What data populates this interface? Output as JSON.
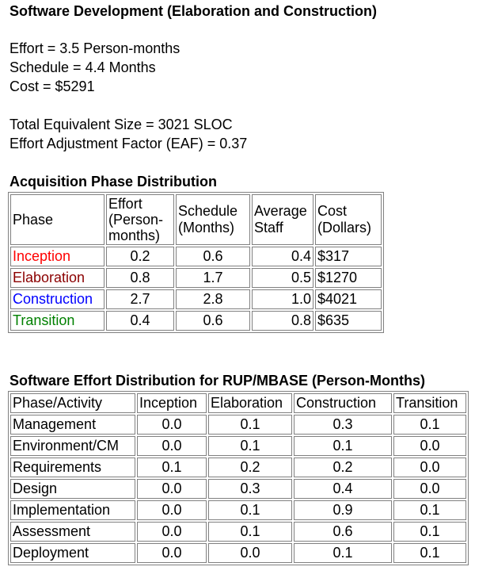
{
  "title": "Software Development (Elaboration and Construction)",
  "summary": {
    "effort": "Effort = 3.5 Person-months",
    "schedule": "Schedule = 4.4 Months",
    "cost": "Cost = $5291"
  },
  "size": {
    "total": "Total Equivalent Size = 3021 SLOC",
    "eaf": "Effort Adjustment Factor (EAF) = 0.37"
  },
  "phase_section": {
    "heading": "Acquisition Phase Distribution",
    "headers": {
      "phase": "Phase",
      "effort_l1": "Effort",
      "effort_l2": "(Person-",
      "effort_l3": "months)",
      "schedule_l1": "Schedule",
      "schedule_l2": "(Months)",
      "staff_l1": "Average",
      "staff_l2": "Staff",
      "cost_l1": "Cost",
      "cost_l2": "(Dollars)"
    },
    "rows": [
      {
        "phase": "Inception",
        "effort": "0.2",
        "schedule": "0.6",
        "staff": "0.4",
        "cost": "$317",
        "color": "#ff0000"
      },
      {
        "phase": "Elaboration",
        "effort": "0.8",
        "schedule": "1.7",
        "staff": "0.5",
        "cost": "$1270",
        "color": "#8b0000"
      },
      {
        "phase": "Construction",
        "effort": "2.7",
        "schedule": "2.8",
        "staff": "1.0",
        "cost": "$4021",
        "color": "#0000ff"
      },
      {
        "phase": "Transition",
        "effort": "0.4",
        "schedule": "0.6",
        "staff": "0.8",
        "cost": "$635",
        "color": "#008000"
      }
    ]
  },
  "dist_section": {
    "heading": "Software Effort Distribution for RUP/MBASE (Person-Months)",
    "headers": [
      "Phase/Activity",
      "Inception",
      "Elaboration",
      "Construction",
      "Transition"
    ],
    "rows": [
      [
        "Management",
        "0.0",
        "0.1",
        "0.3",
        "0.1"
      ],
      [
        "Environment/CM",
        "0.0",
        "0.1",
        "0.1",
        "0.0"
      ],
      [
        "Requirements",
        "0.1",
        "0.2",
        "0.2",
        "0.0"
      ],
      [
        "Design",
        "0.0",
        "0.3",
        "0.4",
        "0.0"
      ],
      [
        "Implementation",
        "0.0",
        "0.1",
        "0.9",
        "0.1"
      ],
      [
        "Assessment",
        "0.0",
        "0.1",
        "0.6",
        "0.1"
      ],
      [
        "Deployment",
        "0.0",
        "0.0",
        "0.1",
        "0.1"
      ]
    ]
  }
}
